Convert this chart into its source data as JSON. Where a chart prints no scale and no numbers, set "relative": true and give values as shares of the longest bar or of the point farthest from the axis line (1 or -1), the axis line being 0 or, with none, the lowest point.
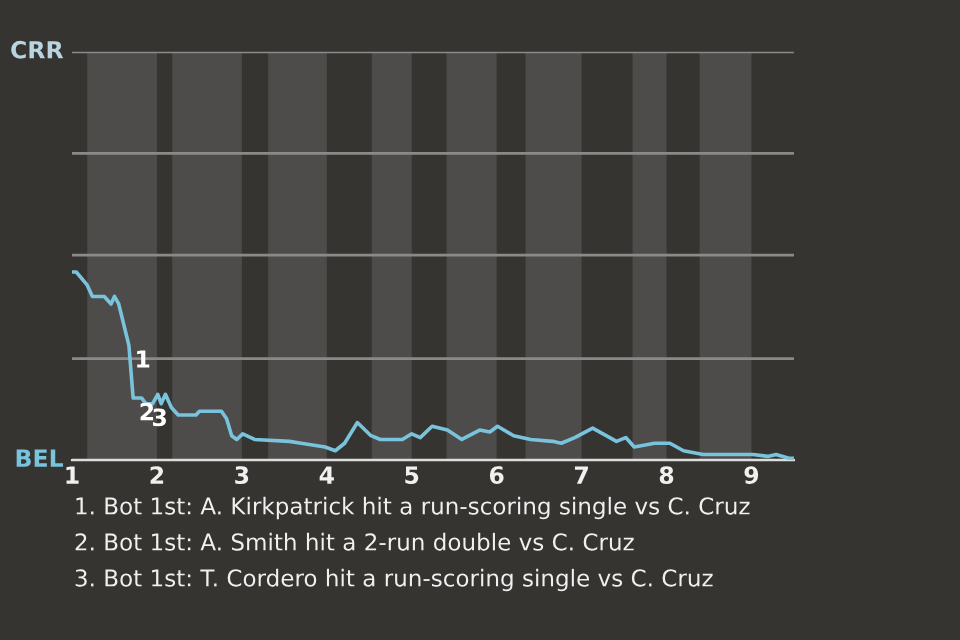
{
  "chart_data": {
    "type": "line",
    "relative": true,
    "x": [
      1.0,
      1.05,
      1.18,
      1.24,
      1.38,
      1.46,
      1.5,
      1.55,
      1.67,
      1.72,
      1.82,
      1.87,
      1.95,
      2.01,
      2.05,
      2.1,
      2.17,
      2.25,
      2.46,
      2.5,
      2.76,
      2.82,
      2.88,
      2.94,
      3.01,
      3.15,
      3.56,
      3.7,
      3.98,
      4.1,
      4.21,
      4.36,
      4.52,
      4.63,
      4.89,
      5.0,
      5.1,
      5.24,
      5.42,
      5.59,
      5.8,
      5.92,
      6.01,
      6.2,
      6.4,
      6.66,
      6.76,
      6.92,
      7.13,
      7.29,
      7.41,
      7.52,
      7.62,
      7.86,
      8.04,
      8.2,
      8.43,
      9.02,
      9.19,
      9.29,
      9.44,
      9.5
    ],
    "series": [
      {
        "color": "#79c3dc",
        "values": [
          1,
          1,
          0.93,
          0.87,
          0.87,
          0.83,
          0.87,
          0.83,
          0.61,
          0.33,
          0.33,
          0.3,
          0.3,
          0.35,
          0.3,
          0.35,
          0.28,
          0.24,
          0.24,
          0.26,
          0.26,
          0.22,
          0.13,
          0.11,
          0.14,
          0.11,
          0.1,
          0.09,
          0.07,
          0.05,
          0.09,
          0.2,
          0.13,
          0.11,
          0.11,
          0.14,
          0.12,
          0.18,
          0.16,
          0.11,
          0.16,
          0.15,
          0.18,
          0.13,
          0.11,
          0.1,
          0.09,
          0.12,
          0.17,
          0.13,
          0.1,
          0.12,
          0.07,
          0.09,
          0.09,
          0.05,
          0.03,
          0.03,
          0.02,
          0.03,
          0.01,
          0.01
        ]
      }
    ],
    "xlim": [
      1,
      9.5
    ],
    "xticks": [
      1,
      2,
      3,
      4,
      5,
      6,
      7,
      8,
      9
    ],
    "ref_lines": [
      {
        "axis": "y",
        "value": 0,
        "label": "BEL",
        "color": "#dddddd"
      },
      {
        "axis": "y",
        "value": 0.54,
        "color": "#8a8a8a"
      },
      {
        "axis": "y",
        "value": 1.09,
        "color": "#8a8a8a"
      },
      {
        "axis": "y",
        "value": 1.63,
        "color": "#8a8a8a"
      },
      {
        "axis": "y",
        "value": 2.17,
        "label": "CRR",
        "color": "#8a8a8a"
      }
    ],
    "legend": false,
    "marker": "none",
    "line_style": "solid",
    "bands": [
      {
        "axis": "x",
        "from": 1.18,
        "to": 2,
        "color": "#4d4c4a"
      },
      {
        "axis": "x",
        "from": 2.18,
        "to": 3,
        "color": "#4d4c4a"
      },
      {
        "axis": "x",
        "from": 3.31,
        "to": 4,
        "color": "#4d4c4a"
      },
      {
        "axis": "x",
        "from": 4.53,
        "to": 5,
        "color": "#4d4c4a"
      },
      {
        "axis": "x",
        "from": 5.41,
        "to": 6,
        "color": "#4d4c4a"
      },
      {
        "axis": "x",
        "from": 6.34,
        "to": 7,
        "color": "#4d4c4a"
      },
      {
        "axis": "x",
        "from": 7.6,
        "to": 8,
        "color": "#4d4c4a"
      },
      {
        "axis": "x",
        "from": 8.39,
        "to": 9,
        "color": "#4d4c4a"
      }
    ],
    "annotations": [
      {
        "text": "1",
        "x": 1.67,
        "y": 0.61
      },
      {
        "text": "2",
        "x": 1.72,
        "y": 0.33
      },
      {
        "text": "3",
        "x": 1.87,
        "y": 0.3
      },
      "1. Bot 1st: A. Kirkpatrick hit a run-scoring single vs C. Cruz",
      "2. Bot 1st: A. Smith hit a 2-run double vs C. Cruz",
      "3. Bot 1st: T. Cordero hit a run-scoring single vs C. Cruz"
    ]
  }
}
